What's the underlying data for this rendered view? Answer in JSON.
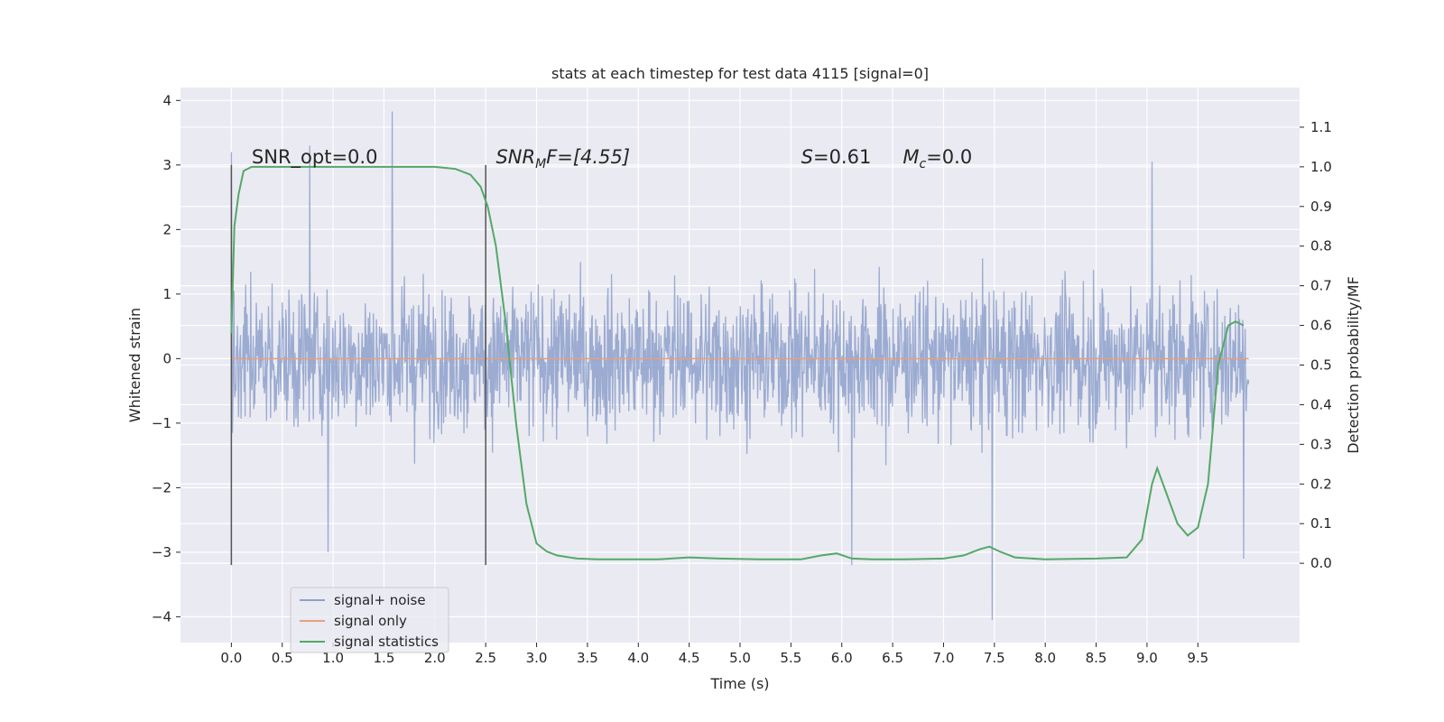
{
  "chart_data": {
    "type": "line",
    "title": "stats at each timestep for test data 4115 [signal=0]",
    "xlabel": "Time (s)",
    "ylabel": "Whitened strain",
    "y2label": "Detection probability/MF",
    "xlim": [
      -0.5,
      10.5
    ],
    "ylim": [
      -4.4,
      4.2
    ],
    "y2lim": [
      -0.2,
      1.2
    ],
    "xticks": [
      "0.0",
      "0.5",
      "1.0",
      "1.5",
      "2.0",
      "2.5",
      "3.0",
      "3.5",
      "4.0",
      "4.5",
      "5.0",
      "5.5",
      "6.0",
      "6.5",
      "7.0",
      "7.5",
      "8.0",
      "8.5",
      "9.0",
      "9.5"
    ],
    "yticks": [
      "−4",
      "−3",
      "−2",
      "−1",
      "0",
      "1",
      "2",
      "3",
      "4"
    ],
    "y2ticks": [
      "0.0",
      "0.1",
      "0.2",
      "0.3",
      "0.4",
      "0.5",
      "0.6",
      "0.7",
      "0.8",
      "0.9",
      "1.0",
      "1.1"
    ],
    "grid": true,
    "legend_placement": "lower-left",
    "vlines": [
      0.0,
      2.5
    ],
    "annotations": [
      {
        "text": "SNR_opt=0.0",
        "x": 0.2,
        "y": 3.0
      },
      {
        "text_main": "SNR",
        "text_sub": "M",
        "text_tail": "F=[4.55]",
        "x": 2.6,
        "y": 3.0
      },
      {
        "text_main": "S",
        "text_tail": "=0.61",
        "x": 5.6,
        "y": 3.0
      },
      {
        "text_main": "M",
        "text_sub": "c",
        "text_tail": "=0.0",
        "x": 6.6,
        "y": 3.0
      }
    ],
    "series": [
      {
        "name": "signal+ noise",
        "color": "#8da0cb",
        "axis": "left",
        "kind": "noise",
        "x_range": [
          0.0,
          10.0
        ],
        "typical_envelope": [
          -1.8,
          1.8
        ],
        "notable_peaks": [
          {
            "x": 0.0,
            "y": 3.2
          },
          {
            "x": 1.58,
            "y": 3.83
          },
          {
            "x": 0.77,
            "y": 3.3
          },
          {
            "x": 7.48,
            "y": -4.05
          },
          {
            "x": 6.1,
            "y": -3.2
          },
          {
            "x": 9.95,
            "y": -3.1
          },
          {
            "x": 9.05,
            "y": 3.05
          },
          {
            "x": 0.95,
            "y": -3.0
          }
        ]
      },
      {
        "name": "signal only",
        "color": "#e5a07c",
        "axis": "left",
        "x": [
          0.0,
          10.0
        ],
        "y": [
          0.0,
          0.0
        ]
      },
      {
        "name": "signal statistics",
        "color": "#55a868",
        "axis": "right",
        "x": [
          0.0,
          0.03,
          0.07,
          0.12,
          0.2,
          0.3,
          0.5,
          1.0,
          1.5,
          2.0,
          2.2,
          2.35,
          2.45,
          2.52,
          2.6,
          2.7,
          2.8,
          2.9,
          3.0,
          3.1,
          3.2,
          3.4,
          3.6,
          4.0,
          4.2,
          4.5,
          4.8,
          5.2,
          5.6,
          5.8,
          5.95,
          6.1,
          6.3,
          6.6,
          7.0,
          7.2,
          7.35,
          7.45,
          7.55,
          7.7,
          8.0,
          8.5,
          8.8,
          8.95,
          9.05,
          9.1,
          9.2,
          9.3,
          9.4,
          9.5,
          9.6,
          9.65,
          9.7,
          9.8,
          9.87,
          9.95
        ],
        "y": [
          0.58,
          0.85,
          0.93,
          0.99,
          1.0,
          1.0,
          1.0,
          1.0,
          1.0,
          1.0,
          0.995,
          0.98,
          0.95,
          0.9,
          0.8,
          0.6,
          0.35,
          0.15,
          0.05,
          0.03,
          0.02,
          0.012,
          0.01,
          0.01,
          0.01,
          0.015,
          0.012,
          0.01,
          0.01,
          0.02,
          0.025,
          0.012,
          0.01,
          0.01,
          0.012,
          0.02,
          0.035,
          0.042,
          0.03,
          0.015,
          0.01,
          0.012,
          0.015,
          0.06,
          0.2,
          0.24,
          0.17,
          0.1,
          0.07,
          0.09,
          0.2,
          0.35,
          0.5,
          0.6,
          0.61,
          0.6
        ]
      }
    ]
  },
  "legend": {
    "items": [
      {
        "label": "signal+ noise",
        "color": "#8da0cb"
      },
      {
        "label": "signal only",
        "color": "#e5a07c"
      },
      {
        "label": "signal statistics",
        "color": "#55a868"
      }
    ]
  }
}
